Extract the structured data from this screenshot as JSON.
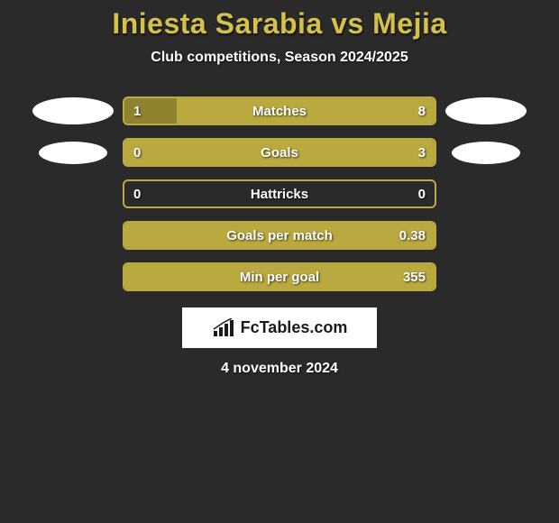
{
  "title": "Iniesta Sarabia vs Mejia",
  "subtitle": "Club competitions, Season 2024/2025",
  "date": "4 november 2024",
  "logo_text": "FcTables.com",
  "colors": {
    "accent": "#b9a93f",
    "accent_fill": "#a89936",
    "border": "#b9a93f",
    "background": "#2a2a2a",
    "ellipse": "#ffffff",
    "text": "#ffffff",
    "title": "#d4c14a"
  },
  "side_shapes": [
    {
      "left_size": "large",
      "right_size": "large"
    },
    {
      "left_size": "small",
      "right_size": "small"
    }
  ],
  "stats": [
    {
      "label": "Matches",
      "left_value": "1",
      "right_value": "8",
      "left_pct": 17,
      "right_pct": 0,
      "fill_side": "left",
      "bar_bg_full": true
    },
    {
      "label": "Goals",
      "left_value": "0",
      "right_value": "3",
      "left_pct": 0,
      "right_pct": 100,
      "fill_side": "right",
      "bar_bg_full": false
    },
    {
      "label": "Hattricks",
      "left_value": "0",
      "right_value": "0",
      "left_pct": 0,
      "right_pct": 0,
      "fill_side": "none",
      "bar_bg_full": false
    },
    {
      "label": "Goals per match",
      "left_value": "",
      "right_value": "0.38",
      "left_pct": 0,
      "right_pct": 100,
      "fill_side": "right",
      "bar_bg_full": false
    },
    {
      "label": "Min per goal",
      "left_value": "",
      "right_value": "355",
      "left_pct": 0,
      "right_pct": 100,
      "fill_side": "right",
      "bar_bg_full": false
    }
  ]
}
